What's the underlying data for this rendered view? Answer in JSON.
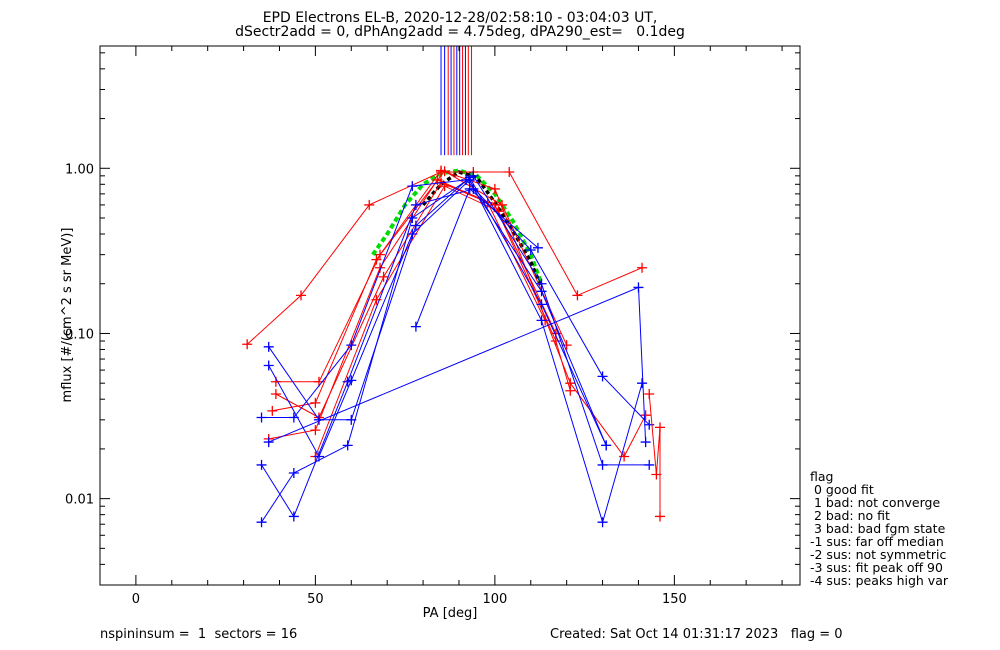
{
  "chart_data": {
    "type": "scatter",
    "title": "EPD Electrons EL-B, 2020-12-28/02:58:10 - 03:04:03 UT,",
    "subtitle": "dSectr2add = 0, dPhAng2add = 4.75deg, dPA290_est=   0.1deg",
    "xlabel": "PA [deg]",
    "ylabel": "mflux [#/(cm^2 s sr MeV)]",
    "xlim": [
      -10,
      185
    ],
    "ylim": [
      0.003,
      5.5
    ],
    "yscale": "log",
    "xticks": [
      0,
      50,
      100,
      150
    ],
    "xtick_labels": [
      "0",
      "50",
      "100",
      "150"
    ],
    "yticks": [
      0.01,
      0.1,
      1.0
    ],
    "ytick_labels": [
      "0.01",
      "0.10",
      "1.00"
    ],
    "colors": {
      "red": "#ff0000",
      "blue": "#0000ff",
      "green": "#00dd00",
      "black": "#000000"
    },
    "series": [
      {
        "color": "red",
        "points": [
          [
            31,
            0.086
          ],
          [
            46,
            0.17
          ],
          [
            65,
            0.6
          ],
          [
            85,
            0.95
          ],
          [
            94,
            0.95
          ],
          [
            104,
            0.95
          ],
          [
            123,
            0.17
          ],
          [
            141,
            0.25
          ]
        ]
      },
      {
        "color": "red",
        "points": [
          [
            39,
            0.051
          ],
          [
            51,
            0.051
          ],
          [
            68,
            0.3
          ],
          [
            85,
            0.97
          ],
          [
            100,
            0.75
          ],
          [
            121,
            0.05
          ],
          [
            136,
            0.018
          ],
          [
            142,
            0.032
          ]
        ]
      },
      {
        "color": "red",
        "points": [
          [
            38,
            0.034
          ],
          [
            50,
            0.038
          ],
          [
            67,
            0.28
          ],
          [
            86,
            0.96
          ],
          [
            102,
            0.6
          ],
          [
            120,
            0.085
          ]
        ]
      },
      {
        "color": "red",
        "points": [
          [
            37,
            0.023
          ],
          [
            50,
            0.026
          ],
          [
            68,
            0.25
          ],
          [
            84,
            0.85
          ],
          [
            100,
            0.6
          ],
          [
            117,
            0.09
          ],
          [
            121,
            0.045
          ]
        ]
      },
      {
        "color": "red",
        "points": [
          [
            39,
            0.043
          ],
          [
            51,
            0.031
          ],
          [
            69,
            0.22
          ],
          [
            85,
            0.82
          ],
          [
            98,
            0.62
          ],
          [
            114,
            0.12
          ]
        ]
      },
      {
        "color": "red",
        "points": [
          [
            50,
            0.018
          ],
          [
            67,
            0.16
          ],
          [
            86,
            0.78
          ],
          [
            101,
            0.55
          ],
          [
            117,
            0.1
          ]
        ]
      },
      {
        "color": "blue",
        "points": [
          [
            35,
            0.031
          ],
          [
            44,
            0.031
          ],
          [
            60,
            0.085
          ],
          [
            77,
            0.78
          ],
          [
            92,
            0.85
          ],
          [
            110,
            0.32
          ],
          [
            130,
            0.055
          ],
          [
            143,
            0.028
          ]
        ]
      },
      {
        "color": "blue",
        "points": [
          [
            35,
            0.016
          ],
          [
            44,
            0.0078
          ],
          [
            59,
            0.051
          ],
          [
            78,
            0.6
          ],
          [
            94,
            0.75
          ],
          [
            113,
            0.18
          ],
          [
            131,
            0.021
          ]
        ]
      },
      {
        "color": "blue",
        "points": [
          [
            35,
            0.0072
          ],
          [
            44,
            0.0143
          ],
          [
            59,
            0.021
          ],
          [
            77,
            0.5
          ],
          [
            94,
            0.9
          ],
          [
            113,
            0.2
          ],
          [
            130,
            0.016
          ],
          [
            143,
            0.016
          ]
        ]
      },
      {
        "color": "blue",
        "points": [
          [
            37,
            0.064
          ],
          [
            51,
            0.018
          ],
          [
            60,
            0.052
          ],
          [
            77,
            0.4
          ],
          [
            93,
            0.85
          ],
          [
            113,
            0.12
          ],
          [
            130,
            0.0072
          ],
          [
            141,
            0.05
          ]
        ]
      },
      {
        "color": "blue",
        "points": [
          [
            37,
            0.083
          ],
          [
            51,
            0.03
          ],
          [
            60,
            0.03
          ],
          [
            78,
            0.45
          ],
          [
            93,
            0.88
          ],
          [
            113,
            0.15
          ],
          [
            131,
            0.021
          ]
        ]
      },
      {
        "color": "blue",
        "points": [
          [
            78,
            0.11
          ],
          [
            93,
            0.75
          ],
          [
            112,
            0.33
          ]
        ]
      },
      {
        "color": "blue",
        "points": [
          [
            37,
            0.022
          ],
          [
            140,
            0.19
          ],
          [
            142,
            0.022
          ]
        ]
      },
      {
        "color": "red",
        "points": [
          [
            143,
            0.043
          ],
          [
            145,
            0.014
          ],
          [
            146,
            0.027
          ],
          [
            146,
            0.0078
          ]
        ]
      }
    ],
    "fit_green": [
      [
        66,
        0.3
      ],
      [
        70,
        0.4
      ],
      [
        75,
        0.6
      ],
      [
        80,
        0.8
      ],
      [
        85,
        0.93
      ],
      [
        90,
        0.97
      ],
      [
        95,
        0.9
      ],
      [
        100,
        0.7
      ],
      [
        105,
        0.48
      ],
      [
        110,
        0.3
      ],
      [
        113,
        0.2
      ]
    ],
    "fit_black": [
      [
        80,
        0.6
      ],
      [
        85,
        0.8
      ],
      [
        90,
        0.95
      ],
      [
        95,
        0.88
      ],
      [
        100,
        0.62
      ],
      [
        105,
        0.42
      ],
      [
        110,
        0.27
      ],
      [
        113,
        0.19
      ]
    ],
    "spike_lines": [
      {
        "x": 85.0,
        "color": "blue"
      },
      {
        "x": 86.0,
        "color": "blue"
      },
      {
        "x": 87.0,
        "color": "red"
      },
      {
        "x": 87.8,
        "color": "blue"
      },
      {
        "x": 88.6,
        "color": "red"
      },
      {
        "x": 89.4,
        "color": "blue"
      },
      {
        "x": 90.2,
        "color": "blue"
      },
      {
        "x": 91.0,
        "color": "red"
      },
      {
        "x": 91.8,
        "color": "blue"
      },
      {
        "x": 92.6,
        "color": "red"
      },
      {
        "x": 93.5,
        "color": "red"
      }
    ],
    "spike_y_range": [
      1.2,
      5.5
    ]
  },
  "legend": {
    "title": "flag",
    "items": [
      " 0 good fit",
      " 1 bad: not converge",
      " 2 bad: no fit",
      " 3 bad: bad fgm state",
      "-1 sus: far off median",
      "-2 sus: not symmetric",
      "-3 sus: fit peak off 90",
      "-4 sus: peaks high var"
    ]
  },
  "footer": {
    "left": "nspininsum =  1  sectors = 16",
    "right": "Created: Sat Oct 14 01:31:17 2023   flag = 0"
  }
}
